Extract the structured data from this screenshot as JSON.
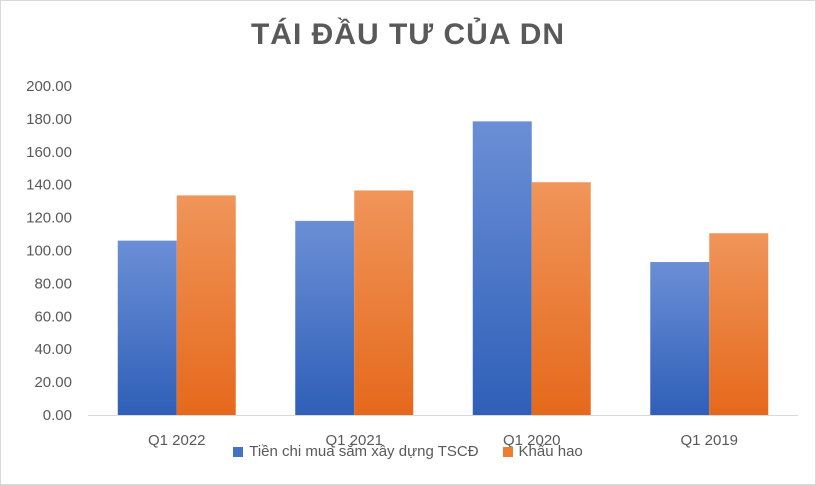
{
  "chart_data": {
    "type": "bar",
    "title": "TÁI ĐẦU TƯ CỦA DN",
    "categories": [
      "Q1 2022",
      "Q1 2021",
      "Q1 2020",
      "Q1 2019"
    ],
    "series": [
      {
        "name": "Tiền chi mua sắm xây dựng TSCĐ",
        "values": [
          106,
          118,
          178.5,
          93
        ],
        "color": "#4472c4"
      },
      {
        "name": "Khấu hao",
        "values": [
          133.5,
          136.5,
          141.5,
          110.5
        ],
        "color": "#ed7d31"
      }
    ],
    "ylim": [
      0,
      200
    ],
    "yticks": [
      "0.00",
      "20.00",
      "40.00",
      "60.00",
      "80.00",
      "100.00",
      "120.00",
      "140.00",
      "160.00",
      "180.00",
      "200.00"
    ],
    "grid": false,
    "legend_position": "bottom"
  }
}
